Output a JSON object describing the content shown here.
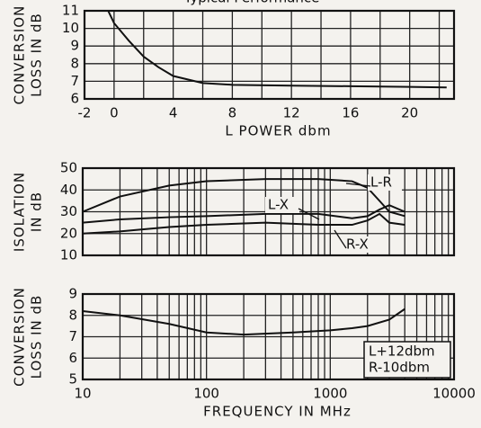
{
  "chart_data": [
    {
      "type": "line",
      "title": "Typical Performance",
      "ylabel": [
        "CONVERSION",
        "LOSS IN dB"
      ],
      "xlabel": "L POWER dbm",
      "x": [
        -0.4,
        0,
        1,
        2,
        3,
        4,
        6,
        8,
        12,
        16,
        20,
        22.5
      ],
      "values": [
        11,
        10.3,
        9.3,
        8.4,
        7.8,
        7.3,
        6.9,
        6.8,
        6.75,
        6.72,
        6.68,
        6.65
      ],
      "color": "#111111",
      "xlim": [
        -2,
        23
      ],
      "xticks": [
        -2,
        0,
        4,
        8,
        12,
        16,
        20
      ],
      "xminor": [
        2,
        6,
        10,
        14,
        18,
        22
      ],
      "ylim": [
        6,
        11
      ],
      "yticks": [
        6,
        7,
        8,
        9,
        10,
        11
      ],
      "grid": true
    },
    {
      "type": "line",
      "ylabel": [
        "ISOLATION",
        "IN dB"
      ],
      "xscale": "log",
      "x": [
        10,
        20,
        50,
        100,
        300,
        800,
        1500,
        2000,
        2500,
        3000,
        4000
      ],
      "series": [
        {
          "name": "L-R",
          "color": "#111111",
          "values": [
            30,
            37,
            42,
            44,
            45,
            45,
            44,
            41,
            35,
            30,
            28
          ]
        },
        {
          "name": "L-X",
          "color": "#111111",
          "values": [
            25,
            26.5,
            27.5,
            28,
            29,
            29,
            27,
            28,
            31,
            33,
            30
          ]
        },
        {
          "name": "R-X",
          "color": "#111111",
          "values": [
            20,
            21,
            23,
            24,
            25,
            24,
            24,
            26,
            29,
            25,
            24
          ]
        }
      ],
      "xlim": [
        10,
        10000
      ],
      "xgrid": [
        10,
        100,
        1000,
        10000
      ],
      "ylim": [
        10,
        50
      ],
      "yticks": [
        10,
        20,
        30,
        40,
        50
      ],
      "grid": true
    },
    {
      "type": "line",
      "ylabel": [
        "CONVERSION",
        "LOSS IN dB"
      ],
      "xlabel": "FREQUENCY IN MHz",
      "xscale": "log",
      "x": [
        10,
        20,
        50,
        100,
        200,
        500,
        1000,
        1500,
        2000,
        3000,
        4000
      ],
      "values": [
        8.2,
        8,
        7.6,
        7.2,
        7.1,
        7.2,
        7.3,
        7.4,
        7.5,
        7.8,
        8.3
      ],
      "color": "#111111",
      "xlim": [
        10,
        10000
      ],
      "xticks": [
        10,
        100,
        1000,
        10000
      ],
      "ylim": [
        5,
        9
      ],
      "yticks": [
        5,
        6,
        7,
        8,
        9
      ],
      "grid": true,
      "annotations": [
        "L+12dbm",
        "R-10dbm"
      ]
    }
  ]
}
